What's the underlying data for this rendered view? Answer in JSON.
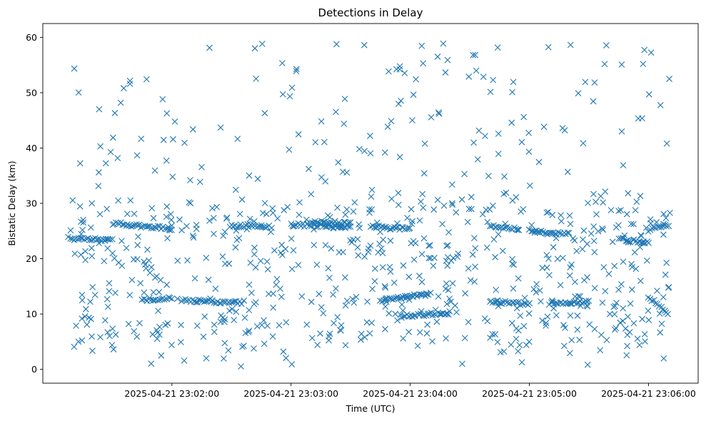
{
  "chart_data": {
    "type": "scatter",
    "title": "Detections in Delay",
    "xlabel": "Time (UTC)",
    "ylabel": "Bistatic Delay (km)",
    "marker": "x",
    "marker_color": "#1f77b4",
    "grid": false,
    "legend": "none",
    "xlim": [
      "2025-04-21 23:00:55",
      "2025-04-21 23:06:25"
    ],
    "ylim": [
      -2.5,
      62.5
    ],
    "x_ticks": [
      "2025-04-21 23:02:00",
      "2025-04-21 23:03:00",
      "2025-04-21 23:04:00",
      "2025-04-21 23:05:00",
      "2025-04-21 23:06:00"
    ],
    "y_ticks": [
      0,
      10,
      20,
      30,
      40,
      50,
      60
    ],
    "time_span": [
      "2025-04-21 23:01:08",
      "2025-04-21 23:06:12"
    ],
    "tracks": [
      {
        "from": [
          "2025-04-21 23:01:08",
          23.7
        ],
        "to": [
          "2025-04-21 23:01:30",
          23.3
        ]
      },
      {
        "from": [
          "2025-04-21 23:01:30",
          26.4
        ],
        "to": [
          "2025-04-21 23:02:00",
          25.4
        ]
      },
      {
        "from": [
          "2025-04-21 23:01:45",
          12.6
        ],
        "to": [
          "2025-04-21 23:02:00",
          12.8
        ]
      },
      {
        "from": [
          "2025-04-21 23:02:05",
          12.5
        ],
        "to": [
          "2025-04-21 23:02:35",
          12.0
        ]
      },
      {
        "from": [
          "2025-04-21 23:02:30",
          26.0
        ],
        "to": [
          "2025-04-21 23:02:50",
          25.8
        ]
      },
      {
        "from": [
          "2025-04-21 23:03:00",
          26.2
        ],
        "to": [
          "2025-04-21 23:03:30",
          25.7
        ]
      },
      {
        "from": [
          "2025-04-21 23:03:10",
          26.6
        ],
        "to": [
          "2025-04-21 23:03:30",
          26.3
        ]
      },
      {
        "from": [
          "2025-04-21 23:03:40",
          25.8
        ],
        "to": [
          "2025-04-21 23:04:00",
          25.4
        ]
      },
      {
        "from": [
          "2025-04-21 23:03:45",
          12.4
        ],
        "to": [
          "2025-04-21 23:04:10",
          13.6
        ]
      },
      {
        "from": [
          "2025-04-21 23:03:55",
          9.6
        ],
        "to": [
          "2025-04-21 23:04:20",
          10.2
        ]
      },
      {
        "from": [
          "2025-04-21 23:04:40",
          25.8
        ],
        "to": [
          "2025-04-21 23:04:55",
          25.4
        ]
      },
      {
        "from": [
          "2025-04-21 23:04:40",
          12.2
        ],
        "to": [
          "2025-04-21 23:05:00",
          11.8
        ]
      },
      {
        "from": [
          "2025-04-21 23:05:00",
          25.0
        ],
        "to": [
          "2025-04-21 23:05:20",
          24.5
        ]
      },
      {
        "from": [
          "2025-04-21 23:05:10",
          12.0
        ],
        "to": [
          "2025-04-21 23:05:30",
          12.2
        ]
      },
      {
        "from": [
          "2025-04-21 23:05:45",
          23.6
        ],
        "to": [
          "2025-04-21 23:06:00",
          22.8
        ]
      },
      {
        "from": [
          "2025-04-21 23:06:00",
          25.2
        ],
        "to": [
          "2025-04-21 23:06:10",
          26.0
        ]
      },
      {
        "from": [
          "2025-04-21 23:06:00",
          13.2
        ],
        "to": [
          "2025-04-21 23:06:10",
          10.0
        ]
      }
    ]
  }
}
